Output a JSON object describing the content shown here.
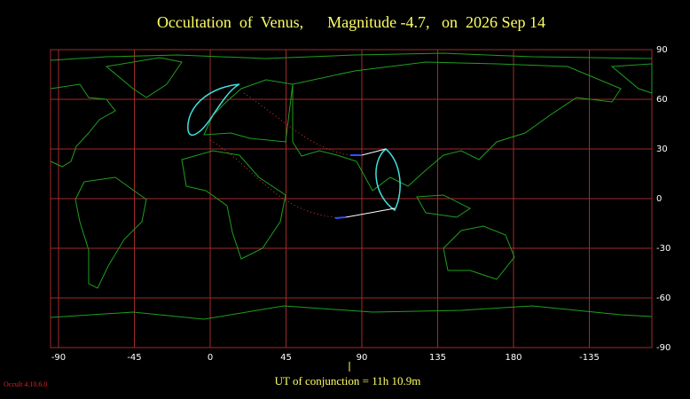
{
  "title": "Occultation  of  Venus,      Magnitude -4.7,   on  2026 Sep 14",
  "map": {
    "lon_ticks": [
      -90,
      -45,
      0,
      45,
      90,
      135,
      180,
      -135
    ],
    "lat_ticks": [
      90,
      60,
      30,
      0,
      -30,
      -60,
      -90
    ]
  },
  "conjunction": "UT of conjunction = 11h 10.9m",
  "version": "Occult 4.10.6.0"
}
